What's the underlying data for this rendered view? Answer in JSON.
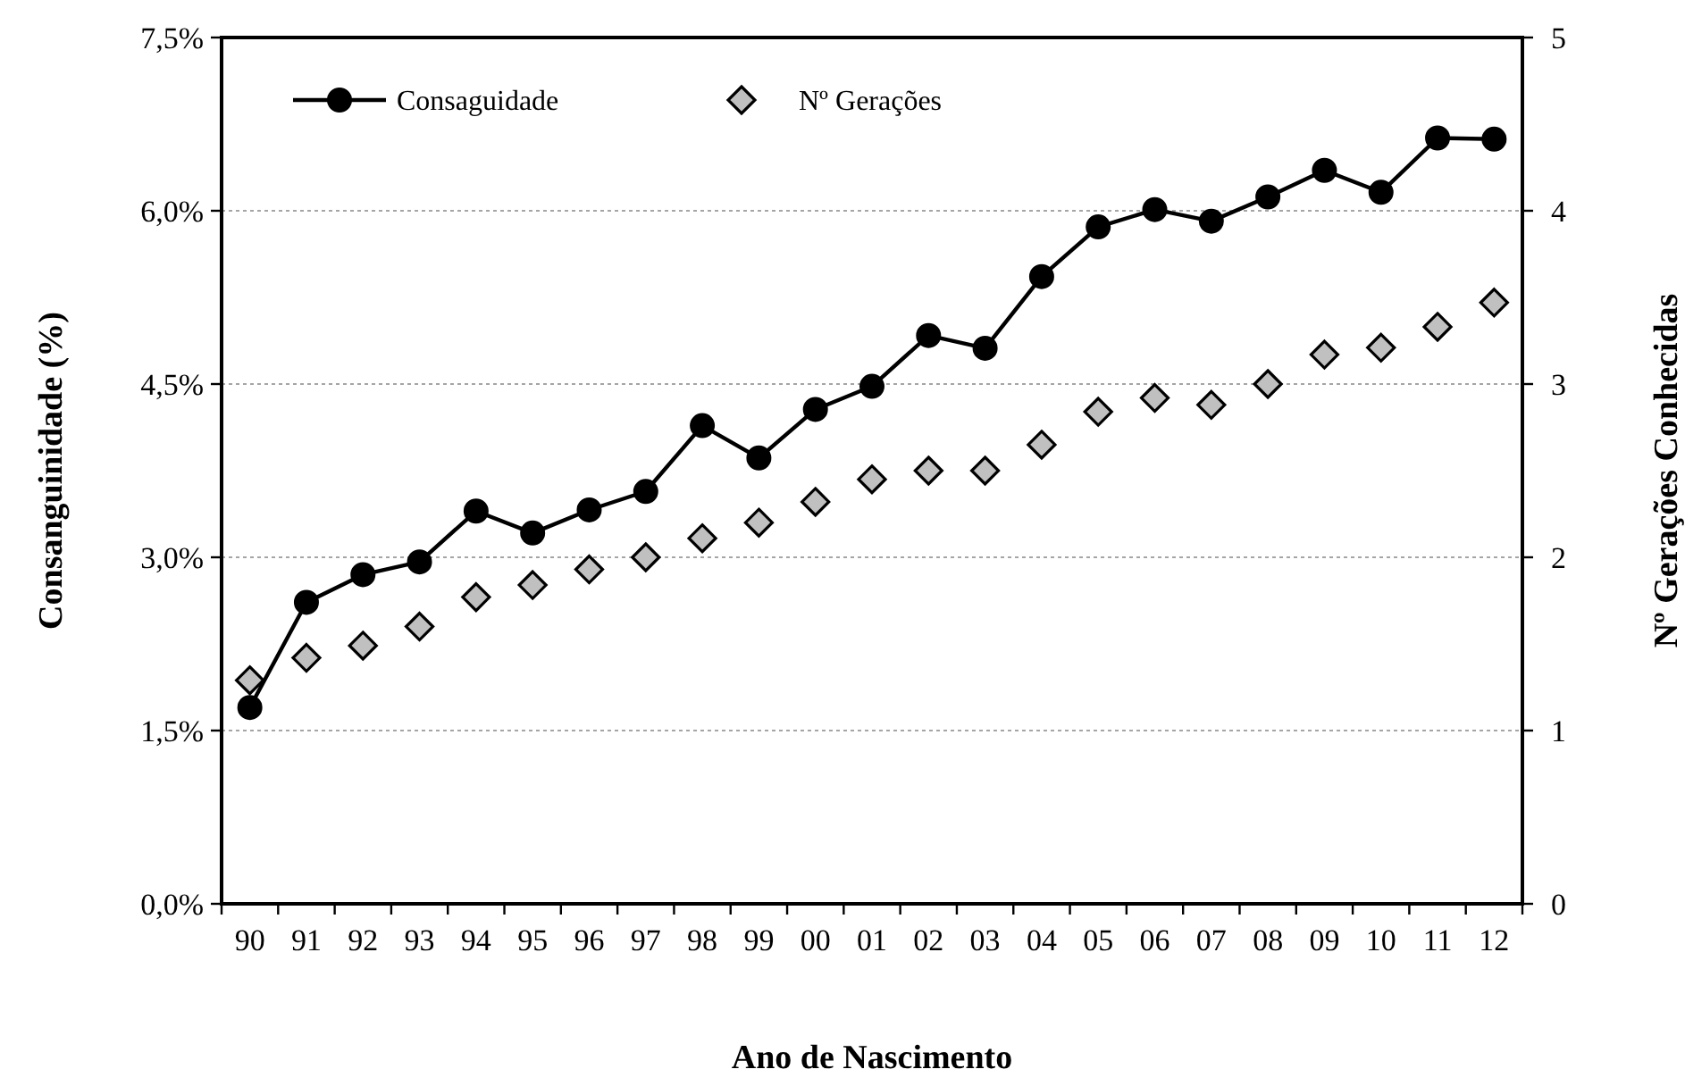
{
  "chart_data": {
    "type": "line",
    "xlabel": "Ano de Nascimento",
    "ylabel": "Consanguinidade (%)",
    "y2label": "Nº Gerações Conhecidas",
    "categories": [
      "90",
      "91",
      "92",
      "93",
      "94",
      "95",
      "96",
      "97",
      "98",
      "99",
      "00",
      "01",
      "02",
      "03",
      "04",
      "05",
      "06",
      "07",
      "08",
      "09",
      "10",
      "11",
      "12"
    ],
    "series": [
      {
        "name": "Consaguidade",
        "color": "#000000",
        "marker": "circle",
        "line_style": "solid",
        "values": [
          1.7,
          2.61,
          2.85,
          2.96,
          3.4,
          3.21,
          3.41,
          3.57,
          4.14,
          3.86,
          4.28,
          4.48,
          4.92,
          4.81,
          5.43,
          5.86,
          6.01,
          5.91,
          6.12,
          6.35,
          6.16,
          6.63,
          6.62
        ]
      },
      {
        "name": "Nº Gerações",
        "type": "scatter",
        "axis": "y2",
        "color": "#c0c0c0",
        "marker": "diamond",
        "values": [
          1.29,
          1.42,
          1.49,
          1.6,
          1.77,
          1.84,
          1.93,
          2.0,
          2.11,
          2.2,
          2.32,
          2.45,
          2.5,
          2.5,
          2.65,
          2.84,
          2.92,
          2.88,
          3.0,
          3.17,
          3.21,
          3.33,
          3.47
        ]
      }
    ],
    "ylim": [
      0,
      7.5
    ],
    "yticks": [
      {
        "value": 0,
        "label": "0,0%"
      },
      {
        "value": 1.5,
        "label": "1,5%"
      },
      {
        "value": 3,
        "label": "3,0%"
      },
      {
        "value": 4.5,
        "label": "4,5%"
      },
      {
        "value": 6,
        "label": "6,0%"
      },
      {
        "value": 7.5,
        "label": "7,5%"
      }
    ],
    "y2lim": [
      0,
      5
    ],
    "y2ticks": [
      0,
      1,
      2,
      3,
      4,
      5
    ],
    "grid": "y",
    "legend": "top left"
  }
}
